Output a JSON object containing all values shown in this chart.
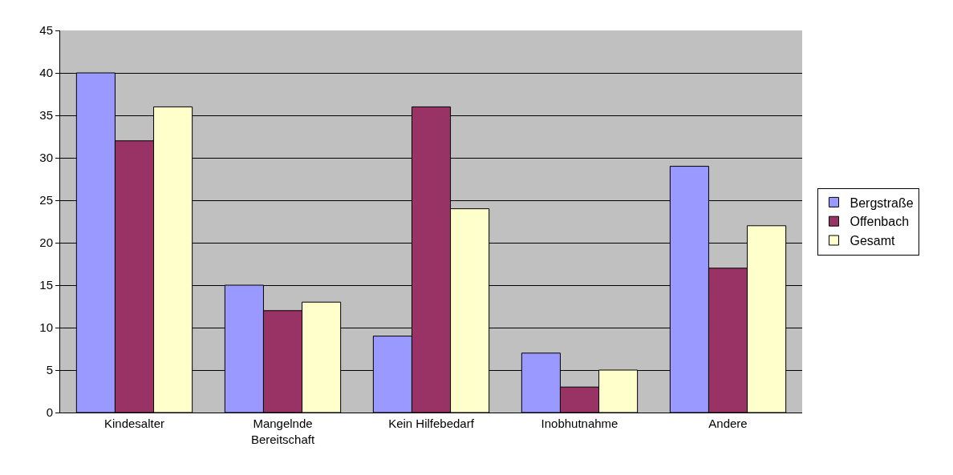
{
  "chart_data": {
    "type": "bar",
    "categories": [
      "Kindesalter",
      "Mangelnde Bereitschaft",
      "Kein Hilfebedarf",
      "Inobhutnahme",
      "Andere"
    ],
    "series": [
      {
        "name": "Bergstraße",
        "color": "#9999ff",
        "values": [
          40,
          15,
          9,
          7,
          29
        ]
      },
      {
        "name": "Offenbach",
        "color": "#993366",
        "values": [
          32,
          12,
          36,
          3,
          17
        ]
      },
      {
        "name": "Gesamt",
        "color": "#ffffcc",
        "values": [
          36,
          13,
          24,
          5,
          22
        ]
      }
    ],
    "ylim": [
      0,
      45
    ],
    "yticks": [
      0,
      5,
      10,
      15,
      20,
      25,
      30,
      35,
      40,
      45
    ],
    "grid": "y",
    "legend": "right"
  }
}
